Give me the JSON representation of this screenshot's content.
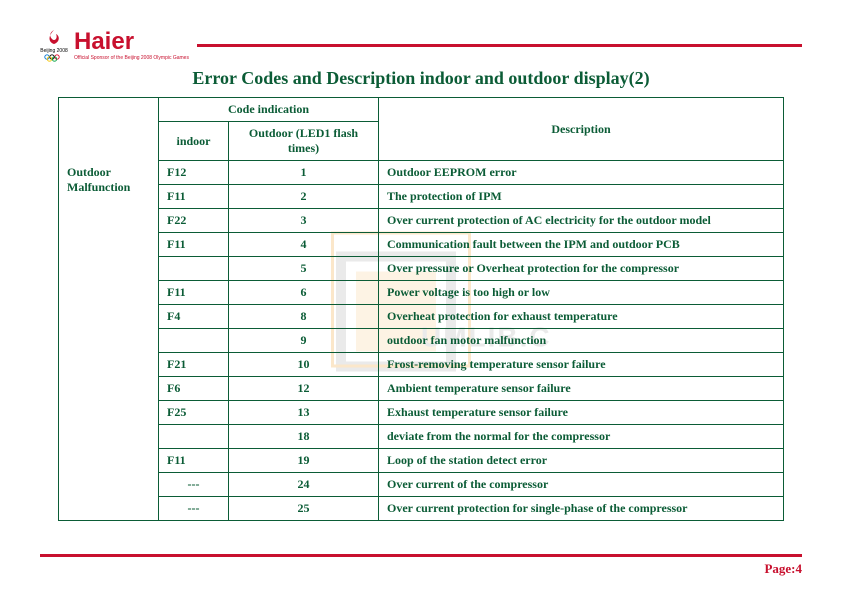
{
  "brand": {
    "name": "Haier",
    "sub": "Official Sponsor of the Beijing 2008 Olympic Games"
  },
  "title": "Error Codes and Description indoor and outdoor display(2)",
  "headers": {
    "code_indication": "Code indication",
    "indoor": "indoor",
    "outdoor": "Outdoor (LED1 flash times)",
    "description": "Description"
  },
  "category": "Outdoor Malfunction",
  "rows": [
    {
      "indoor": "F12",
      "outdoor": "1",
      "desc": "Outdoor  EEPROM error"
    },
    {
      "indoor": "F11",
      "outdoor": "2",
      "desc": "The protection of IPM"
    },
    {
      "indoor": "F22",
      "outdoor": "3",
      "desc": "Over current  protection of  AC electricity  for  the outdoor model"
    },
    {
      "indoor": "F11",
      "outdoor": "4",
      "desc": "Communication fault between the IPM and outdoor PCB"
    },
    {
      "indoor": "",
      "outdoor": "5",
      "desc": "Over pressure or Overheat protection for the compressor"
    },
    {
      "indoor": "F11",
      "outdoor": "6",
      "desc": "Power voltage is too high or low"
    },
    {
      "indoor": "F4",
      "outdoor": "8",
      "desc": "Overheat protection for exhaust temperature"
    },
    {
      "indoor": "",
      "outdoor": "9",
      "desc": "outdoor fan motor malfunction"
    },
    {
      "indoor": "F21",
      "outdoor": "10",
      "desc": "Frost-removing temperature sensor failure"
    },
    {
      "indoor": "F6",
      "outdoor": "12",
      "desc": "Ambient temperature sensor failure"
    },
    {
      "indoor": "F25",
      "outdoor": "13",
      "desc": "Exhaust temperature sensor failure"
    },
    {
      "indoor": "",
      "outdoor": "18",
      "desc": "deviate from the normal  for the compressor"
    },
    {
      "indoor": "F11",
      "outdoor": "19",
      "desc": "Loop  of  the station detect error"
    },
    {
      "indoor": "---",
      "outdoor": "24",
      "desc": "Over current of the compressor",
      "indoor_center": true
    },
    {
      "indoor": "---",
      "outdoor": "25",
      "desc": "Over current protection for single-phase of the compressor",
      "indoor_center": true
    }
  ],
  "footer": {
    "label": "Page:",
    "number": "4"
  },
  "colors": {
    "brand_red": "#c8102e",
    "text_green": "#0b5c36",
    "watermark_orange": "#f4b860",
    "watermark_gray": "#bfbfbf"
  }
}
